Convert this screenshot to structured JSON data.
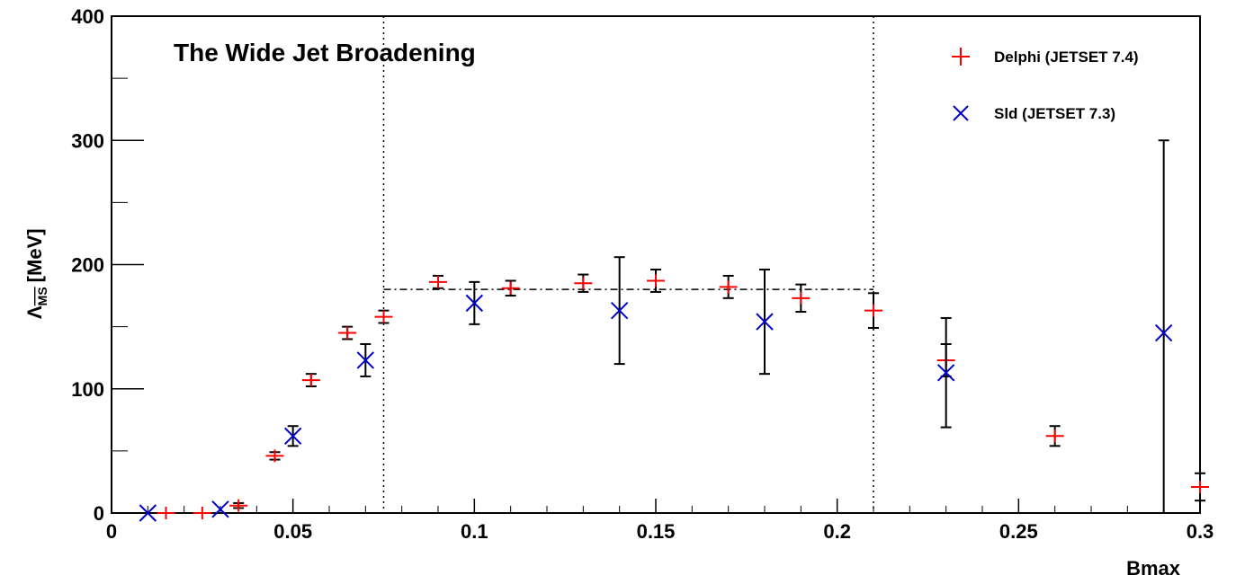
{
  "chart_data": {
    "type": "scatter",
    "title": "The Wide Jet Broadening",
    "xlabel": "Bmax",
    "ylabel": "Λ MS [MeV]",
    "ylabel_main": "Λ",
    "ylabel_sub": "MS",
    "ylabel_unit": "[MeV]",
    "xlim": [
      0,
      0.3
    ],
    "ylim": [
      0,
      400
    ],
    "xticks": [
      0,
      0.05,
      0.1,
      0.15,
      0.2,
      0.25,
      0.3
    ],
    "xtick_labels": [
      "0",
      "0.05",
      "0.1",
      "0.15",
      "0.2",
      "0.25",
      "0.3"
    ],
    "yticks": [
      0,
      100,
      200,
      300,
      400
    ],
    "ytick_labels": [
      "0",
      "100",
      "200",
      "300",
      "400"
    ],
    "grid": false,
    "legend_position": "top-right",
    "vertical_lines": [
      0.075,
      0.21
    ],
    "fit_line": {
      "x": [
        0.075,
        0.21
      ],
      "y": 180
    },
    "series": [
      {
        "name": "Delphi (JETSET 7.4)",
        "marker": "plus",
        "color": "#ff0000",
        "points": [
          {
            "x": 0.015,
            "y": 0,
            "err": 0
          },
          {
            "x": 0.025,
            "y": 0,
            "err": 0
          },
          {
            "x": 0.035,
            "y": 6,
            "err": 2
          },
          {
            "x": 0.045,
            "y": 46,
            "err": 3
          },
          {
            "x": 0.055,
            "y": 107,
            "err": 5
          },
          {
            "x": 0.065,
            "y": 145,
            "err": 5
          },
          {
            "x": 0.075,
            "y": 158,
            "err": 5
          },
          {
            "x": 0.09,
            "y": 186,
            "err": 5
          },
          {
            "x": 0.11,
            "y": 181,
            "err": 6
          },
          {
            "x": 0.13,
            "y": 185,
            "err": 7
          },
          {
            "x": 0.15,
            "y": 187,
            "err": 9
          },
          {
            "x": 0.17,
            "y": 182,
            "err": 9
          },
          {
            "x": 0.19,
            "y": 173,
            "err": 11
          },
          {
            "x": 0.21,
            "y": 163,
            "err": 14
          },
          {
            "x": 0.23,
            "y": 123,
            "err": 13
          },
          {
            "x": 0.26,
            "y": 62,
            "err": 8
          },
          {
            "x": 0.3,
            "y": 21,
            "err": 11
          }
        ]
      },
      {
        "name": "Sld (JETSET 7.3)",
        "marker": "cross",
        "color": "#0000cc",
        "points": [
          {
            "x": 0.01,
            "y": 0,
            "err": 0
          },
          {
            "x": 0.03,
            "y": 3,
            "err": 0
          },
          {
            "x": 0.05,
            "y": 62,
            "err": 8
          },
          {
            "x": 0.07,
            "y": 123,
            "err": 13
          },
          {
            "x": 0.1,
            "y": 169,
            "err": 17
          },
          {
            "x": 0.14,
            "y": 163,
            "err": 43
          },
          {
            "x": 0.18,
            "y": 154,
            "err": 42
          },
          {
            "x": 0.23,
            "y": 113,
            "err": 44
          },
          {
            "x": 0.29,
            "y": 145,
            "err": 155,
            "err_low": 145
          }
        ]
      }
    ]
  }
}
